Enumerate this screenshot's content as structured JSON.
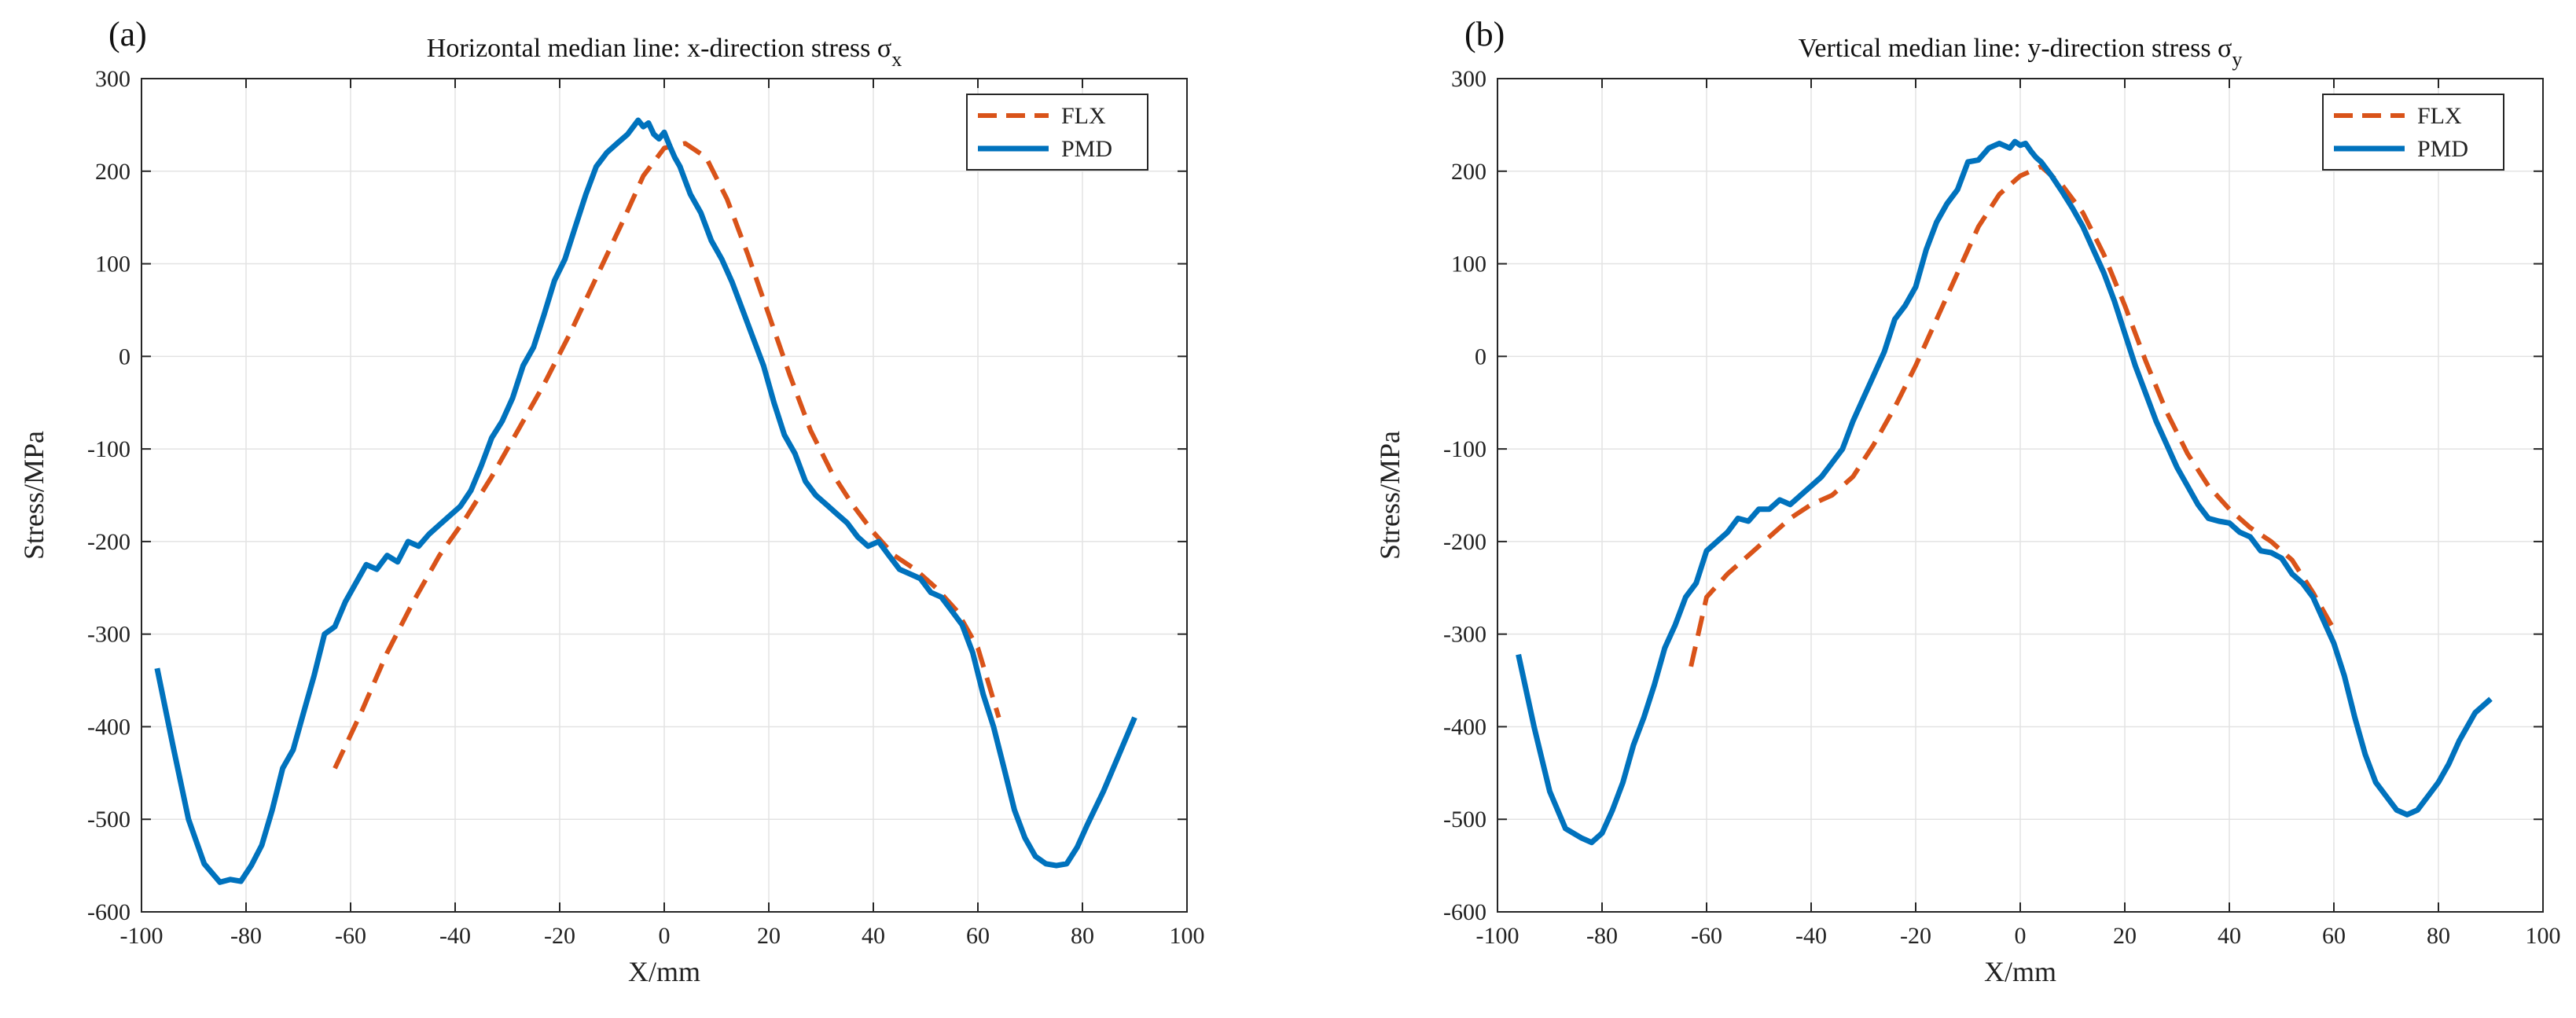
{
  "colors": {
    "flx": "#D95319",
    "pmd": "#0072BD",
    "grid": "#e3e3e3",
    "axis": "#262626"
  },
  "chart_data": [
    {
      "type": "line",
      "panel_label": "(a)",
      "title": "Horizontal median line: x-direction stress σ",
      "title_subscript": "x",
      "xlabel": "X/mm",
      "ylabel": "Stress/MPa",
      "xlim": [
        -100,
        100
      ],
      "ylim": [
        -600,
        300
      ],
      "xticks": [
        -100,
        -80,
        -60,
        -40,
        -20,
        0,
        20,
        40,
        60,
        80,
        100
      ],
      "yticks": [
        -600,
        -500,
        -400,
        -300,
        -200,
        -100,
        0,
        100,
        200,
        300
      ],
      "grid": true,
      "legend": "top-right",
      "series": [
        {
          "name": "FLX",
          "style": "dashed",
          "x": [
            -63,
            -58,
            -53,
            -48,
            -43,
            -38,
            -33,
            -28,
            -23,
            -18,
            -13,
            -8,
            -4,
            0,
            4,
            8,
            12,
            16,
            20,
            24,
            28,
            32,
            36,
            40,
            44,
            48,
            52,
            56,
            60,
            64
          ],
          "y": [
            -445,
            -385,
            -320,
            -265,
            -215,
            -175,
            -130,
            -80,
            -30,
            25,
            85,
            145,
            195,
            225,
            230,
            215,
            170,
            110,
            45,
            -20,
            -80,
            -125,
            -160,
            -190,
            -215,
            -230,
            -250,
            -275,
            -315,
            -390
          ]
        },
        {
          "name": "PMD",
          "style": "solid",
          "x": [
            -97,
            -94,
            -91,
            -88,
            -85,
            -83,
            -81,
            -79,
            -77,
            -75,
            -73,
            -71,
            -69,
            -67,
            -65,
            -63,
            -61,
            -59,
            -57,
            -55,
            -53,
            -51,
            -49,
            -47,
            -45,
            -43,
            -41,
            -39,
            -37,
            -35,
            -33,
            -31,
            -29,
            -27,
            -25,
            -23,
            -21,
            -19,
            -17,
            -15,
            -13,
            -11,
            -9,
            -7,
            -5,
            -4,
            -3,
            -2,
            -1,
            0,
            1,
            2,
            3,
            4,
            5,
            7,
            9,
            11,
            13,
            15,
            17,
            19,
            21,
            23,
            25,
            27,
            29,
            31,
            33,
            35,
            37,
            39,
            41,
            43,
            45,
            47,
            49,
            51,
            53,
            55,
            57,
            59,
            61,
            63,
            65,
            67,
            69,
            71,
            73,
            75,
            77,
            79,
            81,
            84,
            87,
            90
          ],
          "y": [
            -337,
            -420,
            -500,
            -548,
            -568,
            -565,
            -567,
            -550,
            -528,
            -490,
            -445,
            -425,
            -385,
            -345,
            -300,
            -292,
            -265,
            -245,
            -225,
            -230,
            -215,
            -222,
            -200,
            -205,
            -192,
            -182,
            -172,
            -162,
            -145,
            -118,
            -88,
            -70,
            -45,
            -10,
            10,
            45,
            82,
            105,
            140,
            175,
            205,
            220,
            230,
            240,
            255,
            248,
            252,
            240,
            235,
            242,
            228,
            215,
            205,
            190,
            175,
            155,
            125,
            105,
            80,
            50,
            20,
            -10,
            -50,
            -85,
            -105,
            -135,
            -150,
            -160,
            -170,
            -180,
            -195,
            -205,
            -200,
            -215,
            -230,
            -235,
            -240,
            -255,
            -260,
            -275,
            -290,
            -320,
            -365,
            -400,
            -445,
            -490,
            -520,
            -540,
            -548,
            -550,
            -548,
            -530,
            -505,
            -470,
            -430,
            -390
          ]
        }
      ]
    },
    {
      "type": "line",
      "panel_label": "(b)",
      "title": "Vertical median line: y-direction stress σ",
      "title_subscript": "y",
      "xlabel": "X/mm",
      "ylabel": "Stress/MPa",
      "xlim": [
        -100,
        100
      ],
      "ylim": [
        -600,
        300
      ],
      "xticks": [
        -100,
        -80,
        -60,
        -40,
        -20,
        0,
        20,
        40,
        60,
        80,
        100
      ],
      "yticks": [
        -600,
        -500,
        -400,
        -300,
        -200,
        -100,
        0,
        100,
        200,
        300
      ],
      "grid": true,
      "legend": "top-right",
      "series": [
        {
          "name": "FLX",
          "style": "dashed",
          "x": [
            -63,
            -60,
            -56,
            -52,
            -48,
            -44,
            -40,
            -36,
            -32,
            -28,
            -24,
            -20,
            -16,
            -12,
            -8,
            -4,
            0,
            4,
            8,
            12,
            16,
            20,
            24,
            28,
            32,
            36,
            40,
            44,
            48,
            52,
            56,
            60
          ],
          "y": [
            -335,
            -260,
            -235,
            -215,
            -195,
            -175,
            -160,
            -150,
            -130,
            -95,
            -55,
            -10,
            40,
            90,
            140,
            175,
            195,
            205,
            185,
            155,
            110,
            55,
            -5,
            -60,
            -105,
            -140,
            -165,
            -185,
            -200,
            -220,
            -255,
            -295
          ]
        },
        {
          "name": "PMD",
          "style": "solid",
          "x": [
            -96,
            -93,
            -90,
            -87,
            -84,
            -82,
            -80,
            -78,
            -76,
            -74,
            -72,
            -70,
            -68,
            -66,
            -64,
            -62,
            -60,
            -58,
            -56,
            -54,
            -52,
            -50,
            -48,
            -46,
            -44,
            -42,
            -40,
            -38,
            -36,
            -34,
            -32,
            -30,
            -28,
            -26,
            -24,
            -22,
            -20,
            -18,
            -16,
            -14,
            -12,
            -10,
            -8,
            -6,
            -4,
            -2,
            -1,
            0,
            1,
            2,
            3,
            4,
            6,
            8,
            10,
            12,
            14,
            16,
            18,
            20,
            22,
            24,
            26,
            28,
            30,
            32,
            34,
            36,
            38,
            40,
            42,
            44,
            46,
            48,
            50,
            52,
            54,
            56,
            58,
            60,
            62,
            64,
            66,
            68,
            70,
            72,
            74,
            76,
            78,
            80,
            82,
            84,
            87,
            90
          ],
          "y": [
            -322,
            -400,
            -470,
            -510,
            -520,
            -525,
            -515,
            -490,
            -460,
            -420,
            -390,
            -355,
            -315,
            -290,
            -260,
            -245,
            -210,
            -200,
            -190,
            -175,
            -178,
            -165,
            -165,
            -155,
            -160,
            -150,
            -140,
            -130,
            -115,
            -100,
            -70,
            -45,
            -20,
            5,
            40,
            55,
            75,
            115,
            145,
            165,
            180,
            210,
            212,
            225,
            230,
            225,
            232,
            228,
            230,
            222,
            215,
            210,
            195,
            178,
            160,
            140,
            115,
            90,
            60,
            25,
            -10,
            -40,
            -70,
            -95,
            -120,
            -140,
            -160,
            -175,
            -178,
            -180,
            -190,
            -195,
            -210,
            -212,
            -218,
            -235,
            -245,
            -260,
            -285,
            -310,
            -345,
            -390,
            -430,
            -460,
            -475,
            -490,
            -495,
            -490,
            -475,
            -460,
            -440,
            -415,
            -385,
            -370
          ]
        }
      ]
    }
  ]
}
